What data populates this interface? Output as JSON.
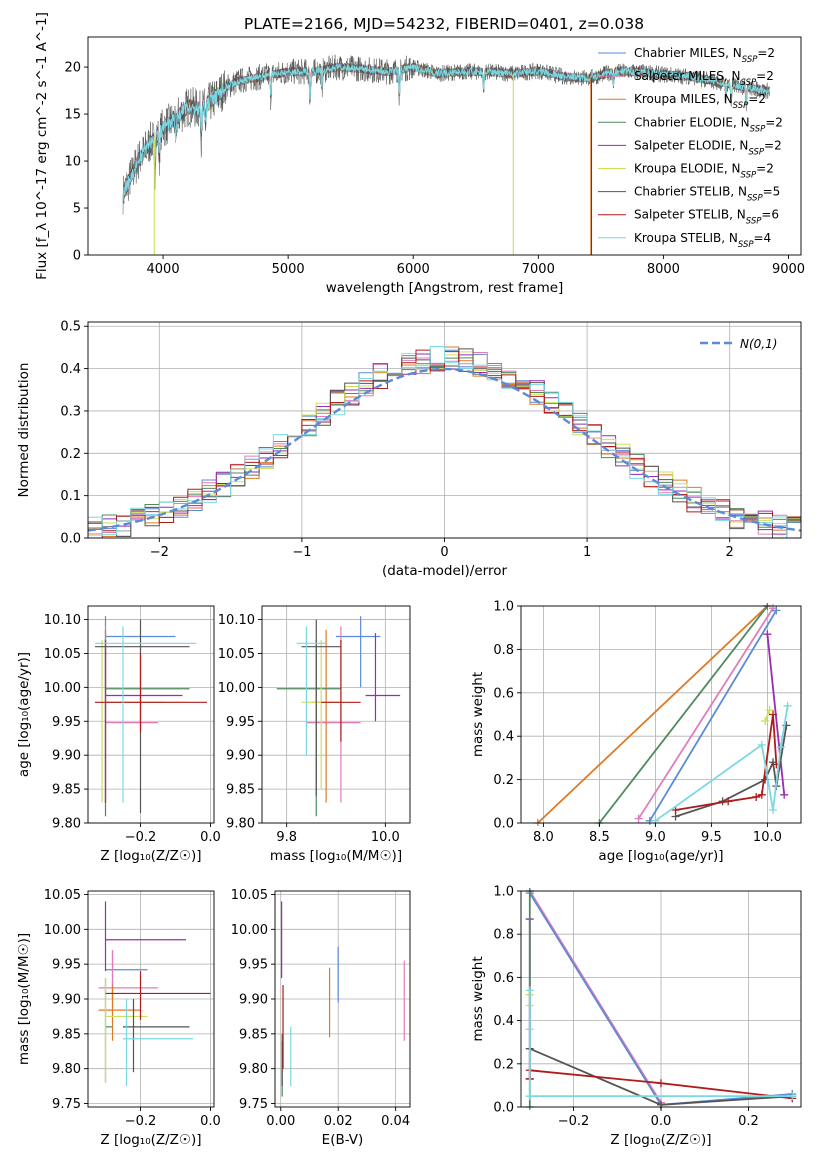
{
  "figure": {
    "title": "PLATE=2166, MJD=54232, FIBERID=0401, z=0.038"
  },
  "models": [
    {
      "key": "chabrier_miles",
      "color": "#5b8bd6"
    },
    {
      "key": "salpeter_miles",
      "color": "#e27cb8"
    },
    {
      "key": "kroupa_miles",
      "color": "#de7a26"
    },
    {
      "key": "chabrier_elodie",
      "color": "#4e8a5c"
    },
    {
      "key": "salpeter_elodie",
      "color": "#9a2bb4"
    },
    {
      "key": "kroupa_elodie",
      "color": "#cde05a"
    },
    {
      "key": "chabrier_stelib",
      "color": "#555555"
    },
    {
      "key": "salpeter_stelib",
      "color": "#b01c1c"
    },
    {
      "key": "kroupa_stelib",
      "color": "#7ad8e2"
    }
  ],
  "chart_data": [
    {
      "id": "spectrum",
      "type": "line",
      "title": "PLATE=2166, MJD=54232, FIBERID=0401, z=0.038",
      "xlabel": "wavelength [Angstrom, rest frame]",
      "ylabel": "Flux [f_λ 10^-17 erg cm^-2 s^-1 A^-1]",
      "xlim": [
        3400,
        9100
      ],
      "ylim": [
        0,
        23.2
      ],
      "xticks": [
        4000,
        5000,
        6000,
        7000,
        8000,
        9000
      ],
      "yticks": [
        0,
        5,
        10,
        15,
        20
      ],
      "legend_position": "top-right",
      "legend": [
        {
          "label": "Chabrier MILES, N_SSP=2",
          "color": "#5b8bd6"
        },
        {
          "label": "Salpeter MILES, N_SSP=2",
          "color": "#e27cb8"
        },
        {
          "label": "Kroupa MILES, N_SSP=2",
          "color": "#de7a26"
        },
        {
          "label": "Chabrier ELODIE, N_SSP=2",
          "color": "#4e8a5c"
        },
        {
          "label": "Salpeter ELODIE, N_SSP=2",
          "color": "#9a2bb4"
        },
        {
          "label": "Kroupa ELODIE, N_SSP=2",
          "color": "#cde05a"
        },
        {
          "label": "Chabrier STELIB, N_SSP=5",
          "color": "#555555"
        },
        {
          "label": "Salpeter STELIB, N_SSP=6",
          "color": "#b01c1c"
        },
        {
          "label": "Kroupa STELIB, N_SSP=4",
          "color": "#7ad8e2"
        }
      ],
      "continuum": {
        "x": [
          3680,
          3800,
          3900,
          4000,
          4100,
          4200,
          4300,
          4400,
          4500,
          4600,
          4800,
          5000,
          5200,
          5400,
          5600,
          5800,
          6000,
          6200,
          6400,
          6600,
          6800,
          7000,
          7200,
          7400,
          7600,
          7800,
          8000,
          8200,
          8400,
          8600,
          8800,
          8850
        ],
        "y": [
          6.5,
          10.0,
          12.0,
          13.5,
          14.5,
          15.8,
          15.5,
          16.5,
          17.8,
          18.5,
          19.0,
          19.5,
          19.5,
          20.0,
          19.8,
          19.5,
          20.0,
          19.3,
          19.5,
          19.5,
          19.3,
          19.6,
          19.0,
          18.8,
          19.5,
          19.5,
          19.2,
          19.0,
          18.5,
          18.0,
          17.5,
          17.5
        ]
      },
      "absorption_features": [
        {
          "x": 3934,
          "depth": 3.5
        },
        {
          "x": 3969,
          "depth": 3.0
        },
        {
          "x": 4101,
          "depth": 2.0
        },
        {
          "x": 4305,
          "depth": 3.0
        },
        {
          "x": 4340,
          "depth": 2.0
        },
        {
          "x": 4861,
          "depth": 2.5
        },
        {
          "x": 5175,
          "depth": 3.5
        },
        {
          "x": 5270,
          "depth": 2.0
        },
        {
          "x": 5890,
          "depth": 3.0
        },
        {
          "x": 6563,
          "depth": 2.0
        },
        {
          "x": 7600,
          "depth": 1.5
        },
        {
          "x": 8500,
          "depth": 1.5
        },
        {
          "x": 8542,
          "depth": 2.0
        },
        {
          "x": 8662,
          "depth": 1.8
        }
      ],
      "model_drops": [
        {
          "color": "#cde05a",
          "x": 3930,
          "to": 0
        },
        {
          "color": "#cde05a",
          "x": 6800,
          "to": 0
        },
        {
          "color": "#de7a26",
          "x": 7420,
          "to": 0
        },
        {
          "color": "#b01c1c",
          "x": 7425,
          "to": 0
        }
      ]
    },
    {
      "id": "residuals",
      "type": "line",
      "xlabel": "(data-model)/error",
      "ylabel": "Normed distribution",
      "xlim": [
        -2.5,
        2.5
      ],
      "ylim": [
        0,
        0.51
      ],
      "xticks": [
        -2,
        -1,
        0,
        1,
        2
      ],
      "yticks": [
        0.0,
        0.1,
        0.2,
        0.3,
        0.4,
        0.5
      ],
      "grid": true,
      "legend_position": "top-right",
      "reference_curve": {
        "label": "N(0,1)",
        "color": "#5b8bd6",
        "dash": true
      },
      "bin_width": 0.1,
      "histogram_series": "nine model histograms, each approximately following N(0,1) with bin-to-bin scatter of about ±0.03"
    },
    {
      "id": "age_vs_Z",
      "type": "scatter",
      "xlabel": "Z [log10(Z/Z_sun)]",
      "ylabel": "age [log10(age/yr)]",
      "xlim": [
        -0.35,
        0.01
      ],
      "ylim": [
        9.8,
        10.12
      ],
      "xticks": [
        -0.2,
        0.0
      ],
      "yticks": [
        9.8,
        9.85,
        9.9,
        9.95,
        10.0,
        10.05,
        10.1
      ],
      "grid": true,
      "points": [
        {
          "color": "#5b8bd6",
          "x": -0.3,
          "xerr": [
            0.3,
            0.1
          ],
          "y": 10.075,
          "yerr": [
            10.0,
            10.105
          ]
        },
        {
          "color": "#e27cb8",
          "x": -0.3,
          "xerr": [
            0.3,
            0.15
          ],
          "y": 9.948,
          "yerr": [
            9.83,
            10.09
          ]
        },
        {
          "color": "#de7a26",
          "x": -0.3,
          "xerr": [
            0.3,
            0.13
          ],
          "y": 9.978,
          "yerr": [
            9.83,
            10.085
          ]
        },
        {
          "color": "#4e8a5c",
          "x": -0.3,
          "xerr": [
            0.3,
            0.06
          ],
          "y": 9.998,
          "yerr": [
            9.81,
            10.07
          ]
        },
        {
          "color": "#9a2bb4",
          "x": -0.3,
          "xerr": [
            0.3,
            0.08
          ],
          "y": 9.988,
          "yerr": [
            9.83,
            10.07
          ]
        },
        {
          "color": "#cde05a",
          "x": -0.31,
          "xerr": [
            0.3,
            0.07
          ],
          "y": 9.978,
          "yerr": [
            9.83,
            10.07
          ]
        },
        {
          "color": "#555555",
          "x": -0.2,
          "xerr": [
            0.33,
            0.06
          ],
          "y": 10.06,
          "yerr": [
            9.815,
            10.1
          ]
        },
        {
          "color": "#b01c1c",
          "x": -0.2,
          "xerr": [
            0.33,
            0.01
          ],
          "y": 9.978,
          "yerr": [
            9.935,
            10.05
          ]
        },
        {
          "color": "#7ad8e2",
          "x": -0.25,
          "xerr": [
            0.33,
            0.04
          ],
          "y": 10.065,
          "yerr": [
            9.83,
            10.09
          ]
        }
      ]
    },
    {
      "id": "age_vs_mass",
      "type": "scatter",
      "xlabel": "mass [log10(M/M_sun)]",
      "xlim": [
        9.75,
        10.05
      ],
      "ylim": [
        9.8,
        10.12
      ],
      "xticks": [
        9.8,
        10.0
      ],
      "yticks": [
        9.8,
        9.85,
        9.9,
        9.95,
        10.0,
        10.05,
        10.1
      ],
      "grid": true,
      "points": [
        {
          "color": "#5b8bd6",
          "x": 9.95,
          "xerr": [
            9.9,
            9.99
          ],
          "y": 10.075,
          "yerr": [
            10.0,
            10.105
          ]
        },
        {
          "color": "#e27cb8",
          "x": 9.91,
          "xerr": [
            9.84,
            9.95
          ],
          "y": 9.948,
          "yerr": [
            9.83,
            10.09
          ]
        },
        {
          "color": "#de7a26",
          "x": 9.88,
          "xerr": [
            9.85,
            9.91
          ],
          "y": 9.978,
          "yerr": [
            9.83,
            10.085
          ]
        },
        {
          "color": "#4e8a5c",
          "x": 9.86,
          "xerr": [
            9.78,
            9.91
          ],
          "y": 9.998,
          "yerr": [
            9.81,
            10.07
          ]
        },
        {
          "color": "#9a2bb4",
          "x": 9.98,
          "xerr": [
            9.96,
            10.03
          ],
          "y": 9.988,
          "yerr": [
            9.95,
            10.08
          ]
        },
        {
          "color": "#cde05a",
          "x": 9.87,
          "xerr": [
            9.83,
            9.91
          ],
          "y": 9.978,
          "yerr": [
            9.85,
            10.07
          ]
        },
        {
          "color": "#555555",
          "x": 9.86,
          "xerr": [
            9.83,
            9.91
          ],
          "y": 10.06,
          "yerr": [
            9.84,
            10.1
          ]
        },
        {
          "color": "#b01c1c",
          "x": 9.91,
          "xerr": [
            9.87,
            9.95
          ],
          "y": 9.978,
          "yerr": [
            9.92,
            10.07
          ]
        },
        {
          "color": "#7ad8e2",
          "x": 9.84,
          "xerr": [
            9.82,
            9.88
          ],
          "y": 10.065,
          "yerr": [
            9.9,
            10.09
          ]
        }
      ]
    },
    {
      "id": "weight_vs_age",
      "type": "line",
      "xlabel": "age [log10(age/yr)]",
      "ylabel": "mass weight",
      "xlim": [
        7.8,
        10.3
      ],
      "ylim": [
        0,
        1.0
      ],
      "xticks": [
        8.0,
        8.5,
        9.0,
        9.5,
        10.0
      ],
      "yticks": [
        0.0,
        0.2,
        0.4,
        0.6,
        0.8,
        1.0
      ],
      "grid": true,
      "series": [
        {
          "color": "#de7a26",
          "x": [
            7.95,
            10.0
          ],
          "y": [
            0.0,
            1.0
          ]
        },
        {
          "color": "#4e8a5c",
          "x": [
            8.5,
            10.0
          ],
          "y": [
            0.0,
            1.0
          ]
        },
        {
          "color": "#e27cb8",
          "x": [
            8.85,
            10.05
          ],
          "y": [
            0.02,
            0.99
          ]
        },
        {
          "color": "#5b8bd6",
          "x": [
            8.95,
            10.08
          ],
          "y": [
            0.01,
            0.98
          ]
        },
        {
          "color": "#9a2bb4",
          "x": [
            10.0,
            10.15
          ],
          "y": [
            0.87,
            0.13
          ]
        },
        {
          "color": "#cde05a",
          "x": [
            9.98,
            10.02
          ],
          "y": [
            0.47,
            0.52
          ]
        },
        {
          "color": "#555555",
          "x": [
            9.18,
            9.6,
            9.98,
            10.05,
            10.08,
            10.17
          ],
          "y": [
            0.03,
            0.1,
            0.2,
            0.28,
            0.17,
            0.45
          ]
        },
        {
          "color": "#b01c1c",
          "x": [
            9.18,
            9.65,
            9.9,
            9.95,
            10.05,
            10.08
          ],
          "y": [
            0.06,
            0.1,
            0.12,
            0.13,
            0.5,
            0.27
          ]
        },
        {
          "color": "#7ad8e2",
          "x": [
            9.0,
            9.95,
            10.05,
            10.12,
            10.18
          ],
          "y": [
            0.01,
            0.36,
            0.06,
            0.35,
            0.54
          ]
        }
      ]
    },
    {
      "id": "mass_vs_Z",
      "type": "scatter",
      "xlabel": "Z [log10(Z/Z_sun)]",
      "ylabel": "mass [log10(M/M_sun)]",
      "xlim": [
        -0.35,
        0.01
      ],
      "ylim": [
        9.745,
        10.055
      ],
      "xticks": [
        -0.2,
        0.0
      ],
      "yticks": [
        9.75,
        9.8,
        9.85,
        9.9,
        9.95,
        10.0,
        10.05
      ],
      "grid": true,
      "points": [
        {
          "color": "#5b8bd6",
          "x": -0.28,
          "xerr": [
            0.3,
            0.18
          ],
          "y": 9.942,
          "yerr": [
            9.9,
            9.97
          ]
        },
        {
          "color": "#e27cb8",
          "x": -0.28,
          "xerr": [
            0.32,
            0.15
          ],
          "y": 9.916,
          "yerr": [
            9.88,
            9.97
          ]
        },
        {
          "color": "#de7a26",
          "x": -0.28,
          "xerr": [
            0.32,
            0.2
          ],
          "y": 9.884,
          "yerr": [
            9.84,
            9.92
          ]
        },
        {
          "color": "#4e8a5c",
          "x": -0.3,
          "xerr": [
            0.3,
            0.28
          ],
          "y": 9.86,
          "yerr": [
            9.78,
            9.93
          ]
        },
        {
          "color": "#9a2bb4",
          "x": -0.3,
          "xerr": [
            0.3,
            0.07
          ],
          "y": 9.985,
          "yerr": [
            9.94,
            10.04
          ]
        },
        {
          "color": "#cde05a",
          "x": -0.3,
          "xerr": [
            0.3,
            0.18
          ],
          "y": 9.875,
          "yerr": [
            9.78,
            9.93
          ]
        },
        {
          "color": "#555555",
          "x": -0.22,
          "xerr": [
            0.25,
            0.06
          ],
          "y": 9.86,
          "yerr": [
            9.795,
            9.9
          ]
        },
        {
          "color": "#b01c1c",
          "x": -0.2,
          "xerr": [
            0.3,
            0.0
          ],
          "y": 9.908,
          "yerr": [
            9.87,
            9.94
          ]
        },
        {
          "color": "#7ad8e2",
          "x": -0.24,
          "xerr": [
            0.25,
            0.05
          ],
          "y": 9.843,
          "yerr": [
            9.775,
            9.9
          ]
        }
      ]
    },
    {
      "id": "mass_vs_EBV",
      "type": "scatter",
      "xlabel": "E(B-V)",
      "xlim": [
        -0.002,
        0.045
      ],
      "ylim": [
        9.745,
        10.055
      ],
      "xticks": [
        0.0,
        0.02,
        0.04
      ],
      "yticks": [
        9.75,
        9.8,
        9.85,
        9.9,
        9.95,
        10.0,
        10.05
      ],
      "grid": true,
      "points": [
        {
          "color": "#5b8bd6",
          "x": 0.02,
          "y": 9.935,
          "yerr": [
            9.895,
            9.975
          ]
        },
        {
          "color": "#e27cb8",
          "x": 0.043,
          "y": 9.9,
          "yerr": [
            9.84,
            9.955
          ]
        },
        {
          "color": "#de7a26",
          "x": 0.017,
          "y": 9.9,
          "yerr": [
            9.845,
            9.945
          ]
        },
        {
          "color": "#4e8a5c",
          "x": 0.0005,
          "y": 9.8,
          "yerr": [
            9.76,
            9.85
          ]
        },
        {
          "color": "#9a2bb4",
          "x": 0.0003,
          "y": 9.985,
          "yerr": [
            9.93,
            10.04
          ]
        },
        {
          "color": "#cde05a",
          "x": 0.0003,
          "y": 9.79,
          "yerr": [
            9.775,
            9.8
          ]
        },
        {
          "color": "#555555",
          "x": 0.0005,
          "y": 9.8,
          "yerr": [
            9.775,
            9.84
          ]
        },
        {
          "color": "#b01c1c",
          "x": 0.0008,
          "y": 9.86,
          "yerr": [
            9.8,
            9.92
          ]
        },
        {
          "color": "#7ad8e2",
          "x": 0.0035,
          "y": 9.81,
          "yerr": [
            9.775,
            9.86
          ]
        }
      ]
    },
    {
      "id": "weight_vs_Z",
      "type": "line",
      "xlabel": "Z [log10(Z/Z_sun)]",
      "ylabel": "mass weight",
      "xlim": [
        -0.32,
        0.32
      ],
      "ylim": [
        0,
        1.0
      ],
      "xticks": [
        -0.2,
        0.0,
        0.2
      ],
      "yticks": [
        0.0,
        0.2,
        0.4,
        0.6,
        0.8,
        1.0
      ],
      "grid": true,
      "series": [
        {
          "color": "#e27cb8",
          "x": [
            -0.3,
            0.0
          ],
          "y": [
            1.0,
            0.02
          ]
        },
        {
          "color": "#5b8bd6",
          "x": [
            -0.3,
            0.0,
            0.3
          ],
          "y": [
            0.99,
            0.01,
            0.06
          ]
        },
        {
          "color": "#9a2bb4",
          "x": [
            -0.3,
            -0.3
          ],
          "y": [
            0.87,
            0.13
          ]
        },
        {
          "color": "#cde05a",
          "x": [
            -0.3,
            -0.3
          ],
          "y": [
            0.52,
            0.47
          ]
        },
        {
          "color": "#4e8a5c",
          "x": [
            -0.3,
            -0.3
          ],
          "y": [
            0.0,
            1.0
          ]
        },
        {
          "color": "#555555",
          "x": [
            -0.3,
            0.0,
            0.3
          ],
          "y": [
            0.27,
            0.01,
            0.05
          ]
        },
        {
          "color": "#b01c1c",
          "x": [
            -0.3,
            -0.3,
            0.0,
            0.3
          ],
          "y": [
            0.13,
            0.17,
            0.11,
            0.04
          ]
        },
        {
          "color": "#7ad8e2",
          "x": [
            -0.3,
            -0.3,
            -0.3,
            0.3
          ],
          "y": [
            0.54,
            0.36,
            0.05,
            0.05
          ]
        }
      ]
    }
  ]
}
